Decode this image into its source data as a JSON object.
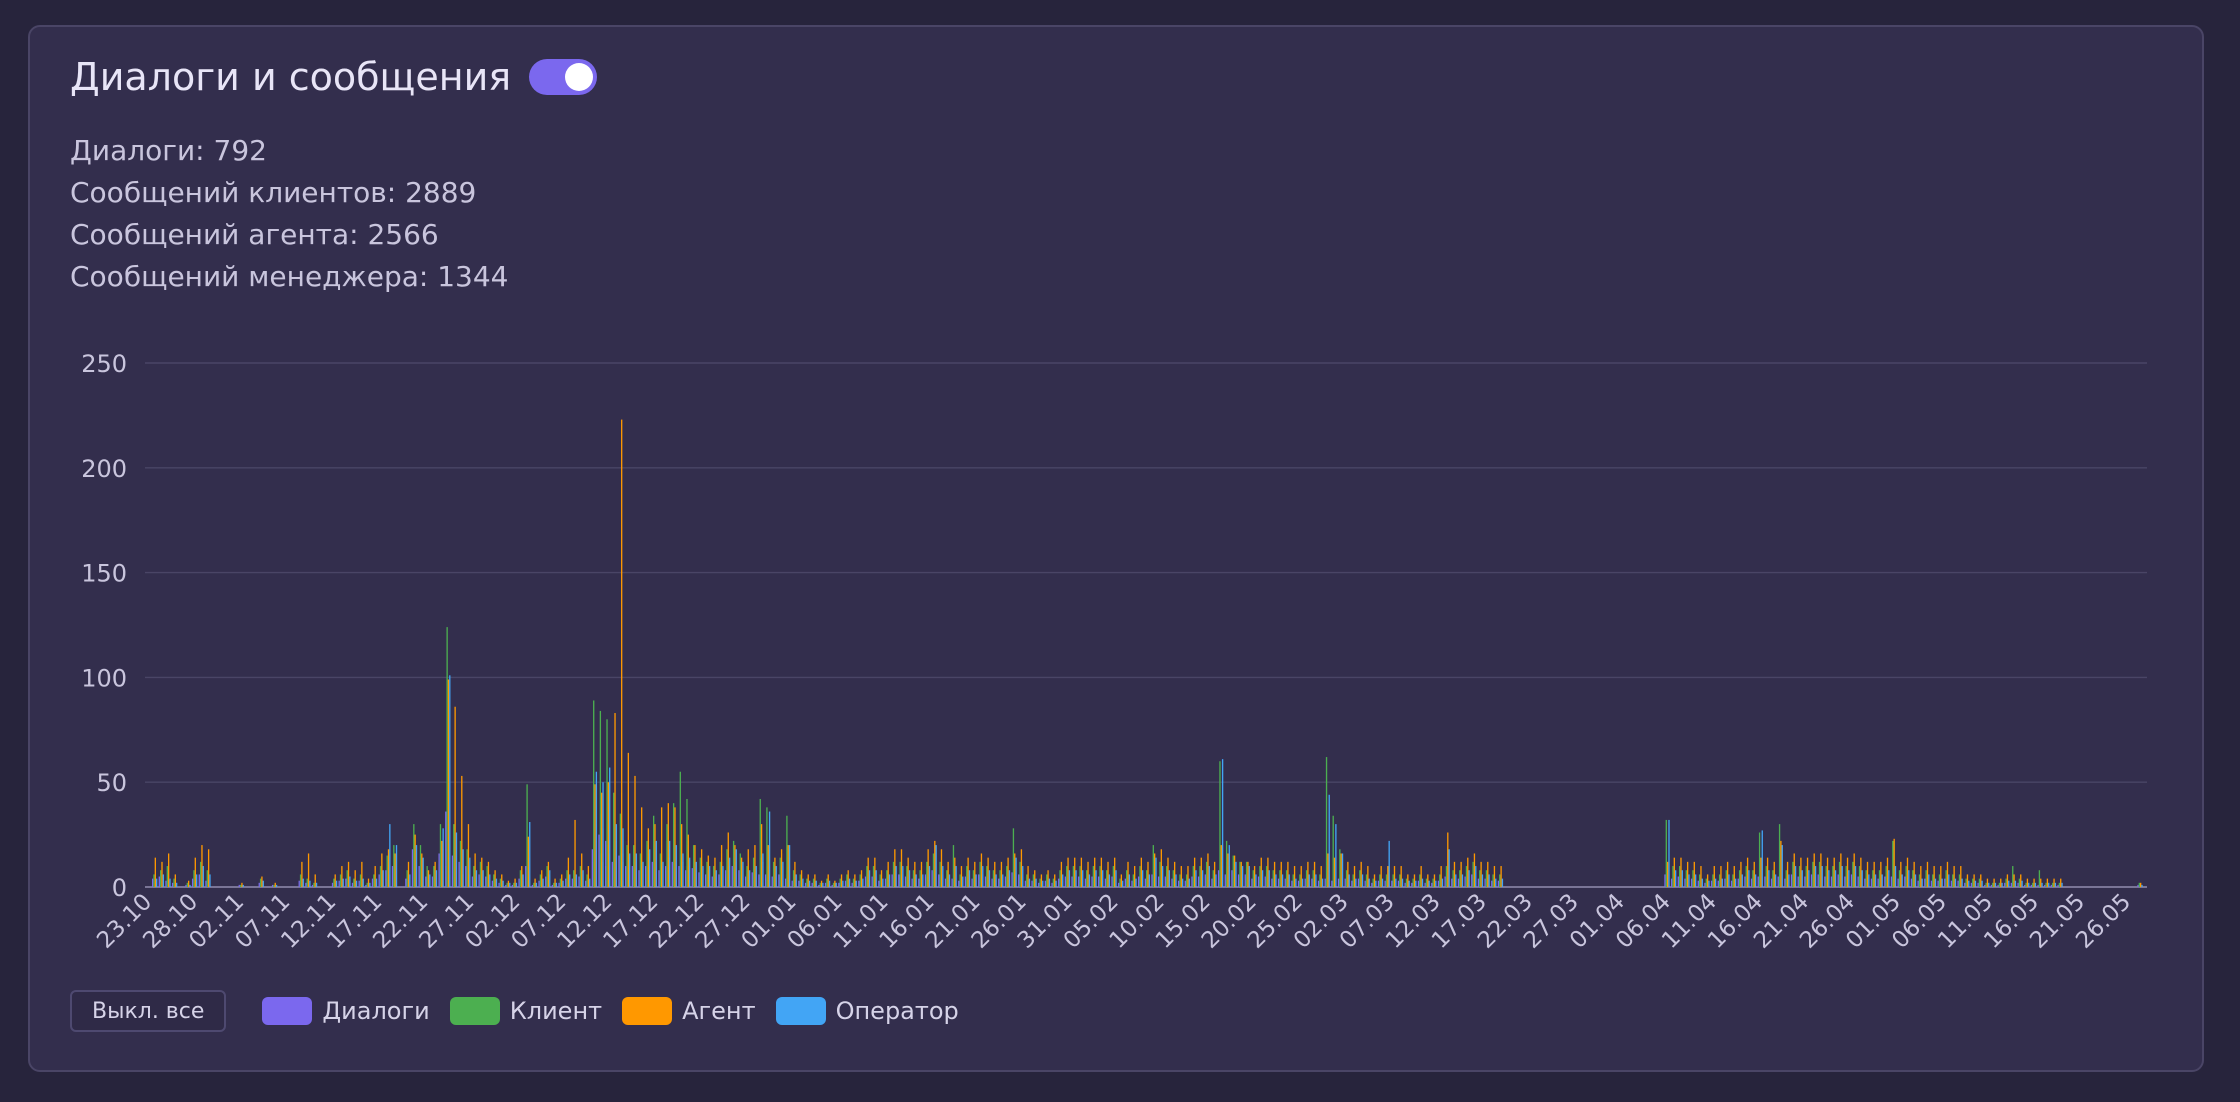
{
  "title": "Диалоги и сообщения",
  "toggle_on": true,
  "stats": [
    "Диалоги: 792",
    "Сообщений клиентов: 2889",
    "Сообщений агента: 2566",
    "Сообщений менеджера: 1344"
  ],
  "legend": {
    "off_all_label": "Выкл. все",
    "items": [
      {
        "label": "Диалоги",
        "color": "#7b68ee"
      },
      {
        "label": "Клиент",
        "color": "#4caf50"
      },
      {
        "label": "Агент",
        "color": "#ff9800"
      },
      {
        "label": "Оператор",
        "color": "#42a5f5"
      }
    ]
  },
  "chart_data": {
    "type": "bar",
    "ylim": [
      0,
      250
    ],
    "yticks": [
      "0",
      "50",
      "100",
      "150",
      "200",
      "250"
    ],
    "xtick_labels": [
      "23.10",
      "28.10",
      "02.11",
      "07.11",
      "12.11",
      "17.11",
      "22.11",
      "27.11",
      "02.12",
      "07.12",
      "12.12",
      "17.12",
      "22.12",
      "27.12",
      "01.01",
      "06.01",
      "11.01",
      "16.01",
      "21.01",
      "26.01",
      "31.01",
      "05.02",
      "10.02",
      "15.02",
      "20.02",
      "25.02",
      "02.03",
      "07.03",
      "12.03",
      "17.03",
      "22.03",
      "27.03",
      "01.04",
      "06.04",
      "11.04",
      "16.04",
      "21.04",
      "26.04",
      "01.05",
      "06.05",
      "11.05",
      "16.05",
      "21.05",
      "26.05"
    ],
    "grid": true,
    "series_colors": [
      "#7b68ee",
      "#4caf50",
      "#ff9800",
      "#42a5f5"
    ],
    "series": [
      {
        "name": "Диалоги",
        "values": [
          4,
          5,
          3,
          2,
          0,
          1,
          4,
          6,
          3,
          0,
          0,
          0,
          0,
          1,
          0,
          0,
          2,
          0,
          1,
          0,
          0,
          0,
          3,
          2,
          1,
          0,
          0,
          2,
          3,
          4,
          2,
          3,
          1,
          4,
          6,
          8,
          10,
          0,
          4,
          18,
          10,
          5,
          5,
          16,
          36,
          15,
          12,
          10,
          5,
          6,
          5,
          3,
          2,
          1,
          1,
          4,
          10,
          1,
          3,
          5,
          1,
          2,
          4,
          4,
          5,
          3,
          18,
          25,
          22,
          12,
          15,
          10,
          10,
          8,
          10,
          12,
          8,
          10,
          12,
          10,
          8,
          9,
          7,
          6,
          5,
          6,
          8,
          10,
          8,
          5,
          7,
          6,
          6,
          5,
          6,
          4,
          3,
          3,
          2,
          2,
          1,
          2,
          1,
          2,
          3,
          2,
          3,
          5,
          5,
          3,
          4,
          6,
          6,
          5,
          4,
          4,
          6,
          8,
          6,
          4,
          4,
          3,
          5,
          4,
          6,
          5,
          4,
          4,
          5,
          7,
          6,
          3,
          3,
          2,
          3,
          2,
          4,
          5,
          5,
          5,
          4,
          5,
          5,
          4,
          5,
          2,
          4,
          3,
          5,
          4,
          6,
          5,
          5,
          4,
          3,
          3,
          5,
          5,
          6,
          4,
          8,
          6,
          8,
          6,
          6,
          4,
          5,
          5,
          4,
          4,
          4,
          3,
          3,
          4,
          4,
          3,
          4,
          3,
          4,
          4,
          3,
          4,
          3,
          2,
          3,
          3,
          3,
          3,
          2,
          2,
          3,
          2,
          2,
          3,
          5,
          4,
          4,
          5,
          6,
          4,
          4,
          3,
          3,
          0,
          0,
          0,
          0,
          0,
          0,
          0,
          0,
          0,
          0,
          0,
          0,
          0,
          0,
          0,
          0,
          0,
          0,
          0,
          0,
          0,
          0,
          0,
          0,
          6,
          4,
          5,
          4,
          4,
          3,
          2,
          3,
          3,
          4,
          3,
          4,
          5,
          4,
          5,
          5,
          4,
          5,
          4,
          6,
          5,
          5,
          6,
          6,
          5,
          5,
          6,
          5,
          6,
          5,
          4,
          4,
          4,
          5,
          5,
          4,
          5,
          4,
          3,
          4,
          3,
          3,
          4,
          3,
          3,
          2,
          2,
          2,
          1,
          1,
          1,
          2,
          2,
          2,
          1,
          1,
          1,
          1,
          1,
          1,
          0,
          0,
          0,
          0,
          0,
          0,
          0,
          0,
          0,
          0,
          0,
          1
        ]
      },
      {
        "name": "Клиент",
        "values": [
          6,
          8,
          10,
          4,
          0,
          2,
          8,
          12,
          8,
          0,
          0,
          0,
          0,
          1,
          0,
          0,
          4,
          0,
          1,
          0,
          0,
          0,
          6,
          4,
          2,
          0,
          0,
          4,
          6,
          8,
          4,
          6,
          2,
          6,
          10,
          15,
          20,
          0,
          8,
          30,
          20,
          10,
          10,
          30,
          124,
          30,
          22,
          18,
          10,
          12,
          10,
          6,
          4,
          2,
          2,
          8,
          49,
          2,
          6,
          10,
          2,
          4,
          8,
          8,
          10,
          6,
          89,
          84,
          80,
          45,
          35,
          20,
          20,
          16,
          22,
          34,
          16,
          30,
          40,
          55,
          42,
          20,
          14,
          12,
          10,
          12,
          18,
          22,
          16,
          10,
          14,
          42,
          38,
          12,
          14,
          34,
          8,
          6,
          4,
          4,
          2,
          4,
          2,
          4,
          6,
          4,
          6,
          10,
          10,
          6,
          8,
          12,
          12,
          10,
          8,
          8,
          12,
          16,
          12,
          8,
          20,
          6,
          10,
          8,
          12,
          10,
          8,
          8,
          10,
          28,
          12,
          6,
          6,
          4,
          6,
          4,
          8,
          10,
          10,
          10,
          8,
          10,
          10,
          8,
          10,
          4,
          8,
          6,
          10,
          8,
          20,
          12,
          10,
          8,
          6,
          6,
          10,
          10,
          12,
          8,
          60,
          22,
          15,
          12,
          12,
          8,
          10,
          10,
          8,
          8,
          8,
          6,
          6,
          8,
          8,
          6,
          62,
          34,
          18,
          8,
          6,
          8,
          6,
          4,
          6,
          6,
          6,
          6,
          4,
          4,
          6,
          4,
          4,
          6,
          10,
          8,
          8,
          10,
          12,
          8,
          8,
          6,
          6,
          0,
          0,
          0,
          0,
          0,
          0,
          0,
          0,
          0,
          0,
          0,
          0,
          0,
          0,
          0,
          0,
          0,
          0,
          0,
          0,
          0,
          0,
          0,
          0,
          32,
          10,
          10,
          8,
          8,
          6,
          4,
          6,
          6,
          8,
          6,
          8,
          10,
          8,
          26,
          10,
          8,
          30,
          8,
          12,
          10,
          10,
          12,
          12,
          10,
          10,
          12,
          10,
          12,
          10,
          8,
          8,
          8,
          10,
          22,
          8,
          10,
          8,
          6,
          8,
          6,
          6,
          8,
          6,
          6,
          4,
          4,
          4,
          2,
          2,
          2,
          4,
          10,
          4,
          2,
          2,
          8,
          2,
          2,
          2,
          0,
          0,
          0,
          0,
          0,
          0,
          0,
          0,
          0,
          0,
          0,
          2
        ]
      },
      {
        "name": "Агент",
        "values": [
          14,
          12,
          16,
          6,
          0,
          3,
          14,
          20,
          18,
          0,
          0,
          0,
          0,
          2,
          0,
          0,
          5,
          0,
          2,
          0,
          0,
          0,
          12,
          16,
          6,
          0,
          0,
          6,
          10,
          12,
          8,
          12,
          4,
          10,
          16,
          18,
          16,
          0,
          12,
          25,
          16,
          8,
          12,
          22,
          99,
          86,
          53,
          30,
          16,
          14,
          12,
          8,
          6,
          3,
          4,
          10,
          24,
          4,
          8,
          12,
          4,
          6,
          14,
          32,
          16,
          10,
          49,
          45,
          50,
          83,
          223,
          64,
          53,
          38,
          28,
          30,
          38,
          40,
          38,
          30,
          25,
          20,
          18,
          15,
          14,
          20,
          26,
          20,
          14,
          18,
          20,
          30,
          20,
          14,
          18,
          20,
          12,
          8,
          6,
          6,
          3,
          6,
          3,
          6,
          8,
          6,
          8,
          14,
          14,
          8,
          12,
          18,
          18,
          14,
          12,
          12,
          18,
          22,
          18,
          12,
          14,
          10,
          14,
          12,
          16,
          14,
          12,
          12,
          14,
          16,
          18,
          10,
          8,
          6,
          8,
          6,
          12,
          14,
          14,
          14,
          12,
          14,
          14,
          12,
          14,
          6,
          12,
          10,
          14,
          12,
          16,
          18,
          14,
          12,
          10,
          10,
          14,
          14,
          16,
          12,
          20,
          16,
          15,
          12,
          12,
          10,
          14,
          14,
          12,
          12,
          12,
          10,
          10,
          12,
          12,
          10,
          16,
          14,
          16,
          12,
          10,
          12,
          10,
          6,
          10,
          10,
          10,
          10,
          6,
          6,
          10,
          6,
          6,
          10,
          26,
          12,
          12,
          14,
          16,
          12,
          12,
          10,
          10,
          0,
          0,
          0,
          0,
          0,
          0,
          0,
          0,
          0,
          0,
          0,
          0,
          0,
          0,
          0,
          0,
          0,
          0,
          0,
          0,
          0,
          0,
          0,
          0,
          12,
          14,
          14,
          12,
          12,
          10,
          6,
          10,
          10,
          12,
          10,
          12,
          14,
          12,
          14,
          14,
          12,
          22,
          12,
          16,
          14,
          14,
          16,
          16,
          14,
          14,
          16,
          14,
          16,
          14,
          12,
          12,
          12,
          14,
          23,
          12,
          14,
          12,
          10,
          12,
          10,
          10,
          12,
          10,
          10,
          6,
          6,
          6,
          4,
          4,
          4,
          6,
          6,
          6,
          4,
          4,
          4,
          4,
          4,
          4,
          0,
          0,
          0,
          0,
          0,
          0,
          0,
          0,
          0,
          0,
          0,
          2
        ]
      },
      {
        "name": "Оператор",
        "values": [
          4,
          6,
          4,
          2,
          0,
          1,
          6,
          10,
          6,
          0,
          0,
          0,
          0,
          1,
          0,
          0,
          3,
          0,
          1,
          0,
          0,
          0,
          4,
          3,
          2,
          0,
          0,
          3,
          4,
          5,
          3,
          4,
          2,
          4,
          8,
          30,
          20,
          0,
          6,
          20,
          14,
          6,
          8,
          28,
          101,
          26,
          18,
          14,
          8,
          8,
          6,
          4,
          3,
          2,
          2,
          6,
          31,
          2,
          4,
          8,
          2,
          3,
          6,
          6,
          8,
          4,
          55,
          50,
          57,
          30,
          28,
          16,
          16,
          12,
          18,
          22,
          12,
          22,
          20,
          16,
          14,
          12,
          10,
          10,
          8,
          10,
          14,
          18,
          12,
          8,
          10,
          16,
          36,
          10,
          12,
          20,
          6,
          4,
          3,
          3,
          2,
          3,
          2,
          3,
          4,
          3,
          4,
          8,
          8,
          4,
          6,
          10,
          10,
          8,
          6,
          6,
          10,
          20,
          10,
          6,
          10,
          5,
          8,
          6,
          10,
          8,
          6,
          6,
          8,
          14,
          10,
          4,
          4,
          3,
          4,
          3,
          6,
          8,
          8,
          8,
          6,
          8,
          8,
          6,
          8,
          3,
          6,
          4,
          8,
          6,
          14,
          10,
          8,
          6,
          4,
          4,
          8,
          8,
          10,
          6,
          61,
          20,
          12,
          10,
          10,
          6,
          8,
          8,
          6,
          6,
          6,
          4,
          4,
          6,
          6,
          4,
          44,
          30,
          16,
          6,
          4,
          6,
          4,
          3,
          4,
          22,
          4,
          4,
          3,
          3,
          4,
          3,
          3,
          4,
          18,
          6,
          6,
          8,
          10,
          6,
          6,
          4,
          4,
          0,
          0,
          0,
          0,
          0,
          0,
          0,
          0,
          0,
          0,
          0,
          0,
          0,
          0,
          0,
          0,
          0,
          0,
          0,
          0,
          0,
          0,
          0,
          0,
          32,
          8,
          8,
          6,
          6,
          4,
          3,
          4,
          4,
          6,
          4,
          6,
          8,
          6,
          27,
          8,
          6,
          20,
          6,
          10,
          8,
          8,
          10,
          10,
          8,
          8,
          10,
          8,
          10,
          8,
          6,
          6,
          6,
          8,
          10,
          6,
          8,
          6,
          4,
          6,
          4,
          4,
          6,
          4,
          4,
          3,
          3,
          3,
          2,
          2,
          2,
          3,
          3,
          3,
          2,
          2,
          2,
          2,
          2,
          2,
          0,
          0,
          0,
          0,
          0,
          0,
          0,
          0,
          0,
          0,
          0,
          1
        ]
      }
    ]
  }
}
